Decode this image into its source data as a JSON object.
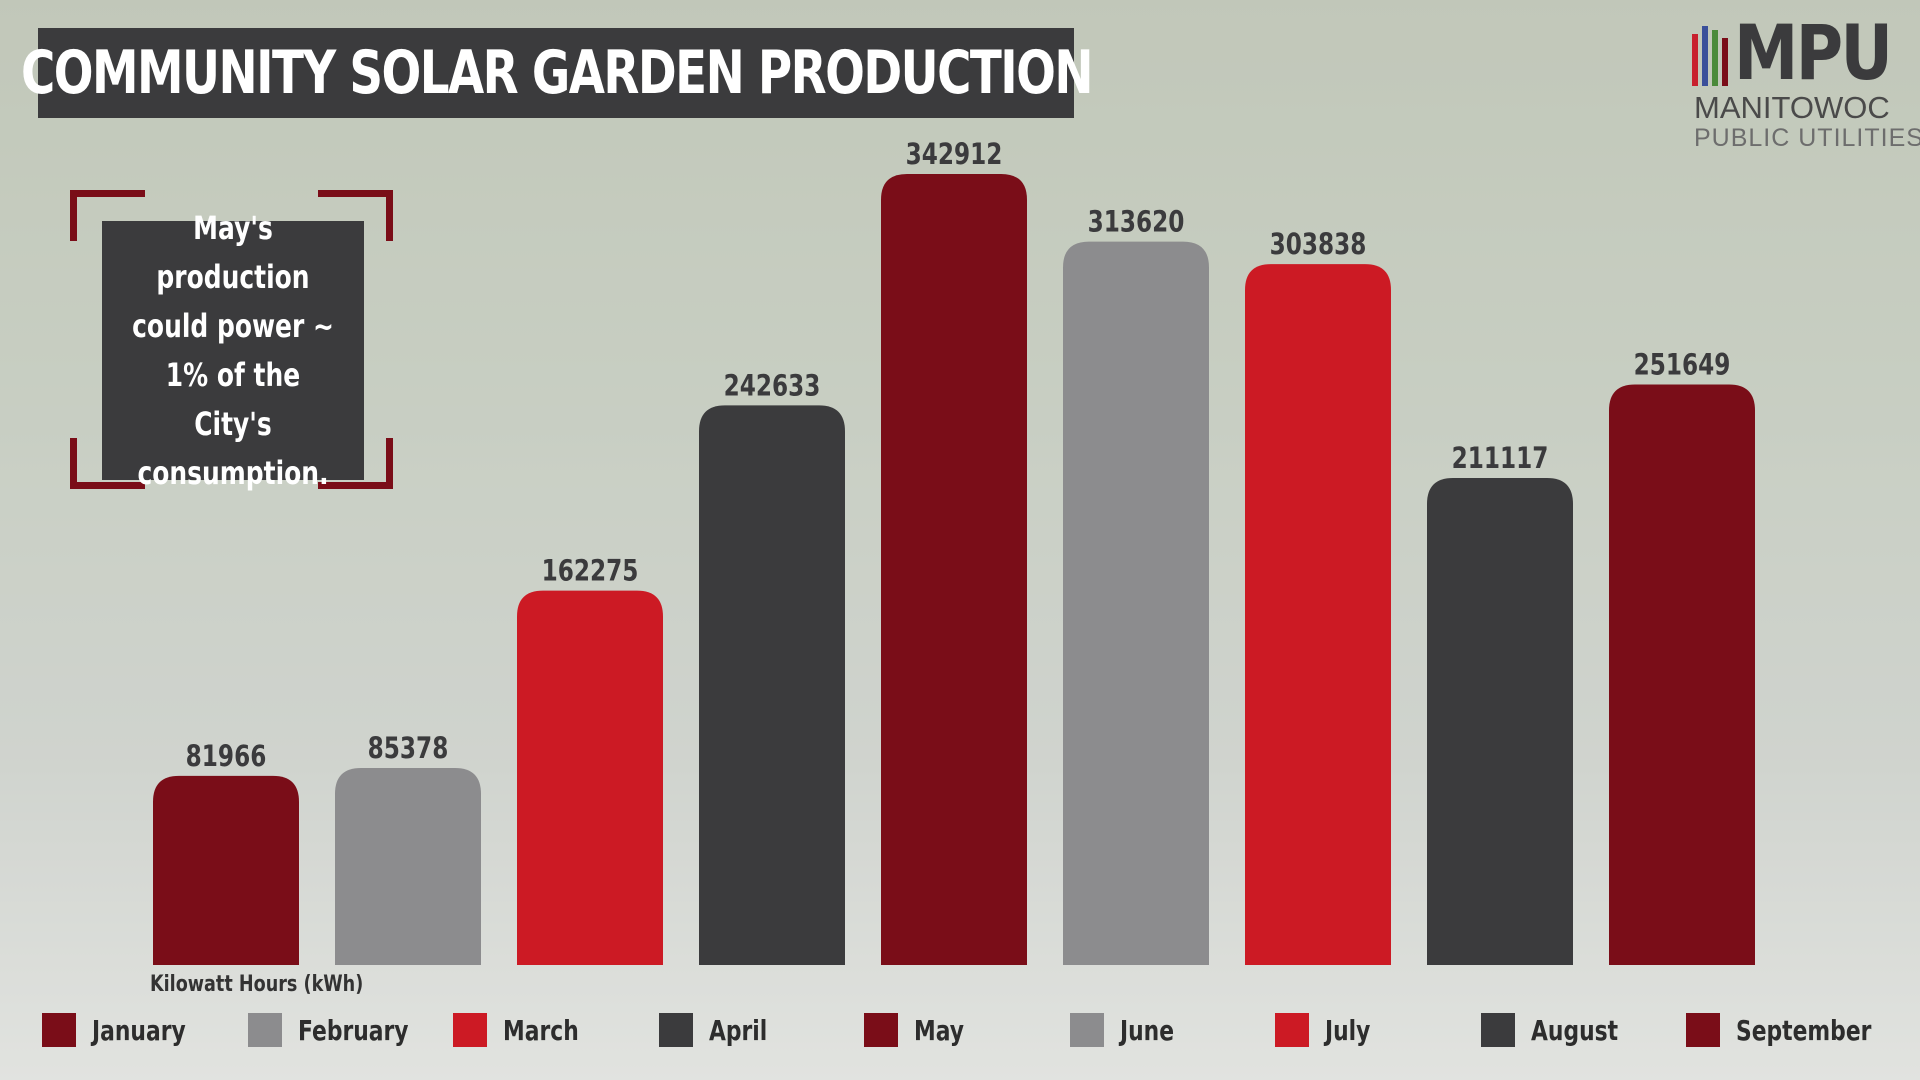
{
  "title": "COMMUNITY SOLAR GARDEN PRODUCTION",
  "callout": "May's production could power ~ 1% of the City's consumption.",
  "logo": {
    "mark": "MPU",
    "line1": "MANITOWOC",
    "line2": "PUBLIC UTILITIES",
    "stripe_colors": [
      "#c8202e",
      "#3a4f9a",
      "#4a8a3a",
      "#7a0d18"
    ]
  },
  "unit_label": "Kilowatt Hours (kWh)",
  "colors": {
    "dark_red": "#7a0d18",
    "gray": "#8c8c8e",
    "red": "#cc1a24",
    "charcoal": "#3b3b3d",
    "title_bg": "#3b3b3d"
  },
  "chart_data": {
    "type": "bar",
    "categories": [
      "January",
      "February",
      "March",
      "April",
      "May",
      "June",
      "July",
      "August",
      "September"
    ],
    "values": [
      81966,
      85378,
      162275,
      242633,
      342912,
      313620,
      303838,
      211117,
      251649
    ],
    "bar_colors": [
      "#7a0d18",
      "#8c8c8e",
      "#cc1a24",
      "#3b3b3d",
      "#7a0d18",
      "#8c8c8e",
      "#cc1a24",
      "#3b3b3d",
      "#7a0d18"
    ],
    "title": "COMMUNITY SOLAR GARDEN PRODUCTION",
    "ylabel": "Kilowatt Hours (kWh)",
    "ylim": [
      0,
      342912
    ],
    "grid": false,
    "legend_placement": "bottom"
  }
}
